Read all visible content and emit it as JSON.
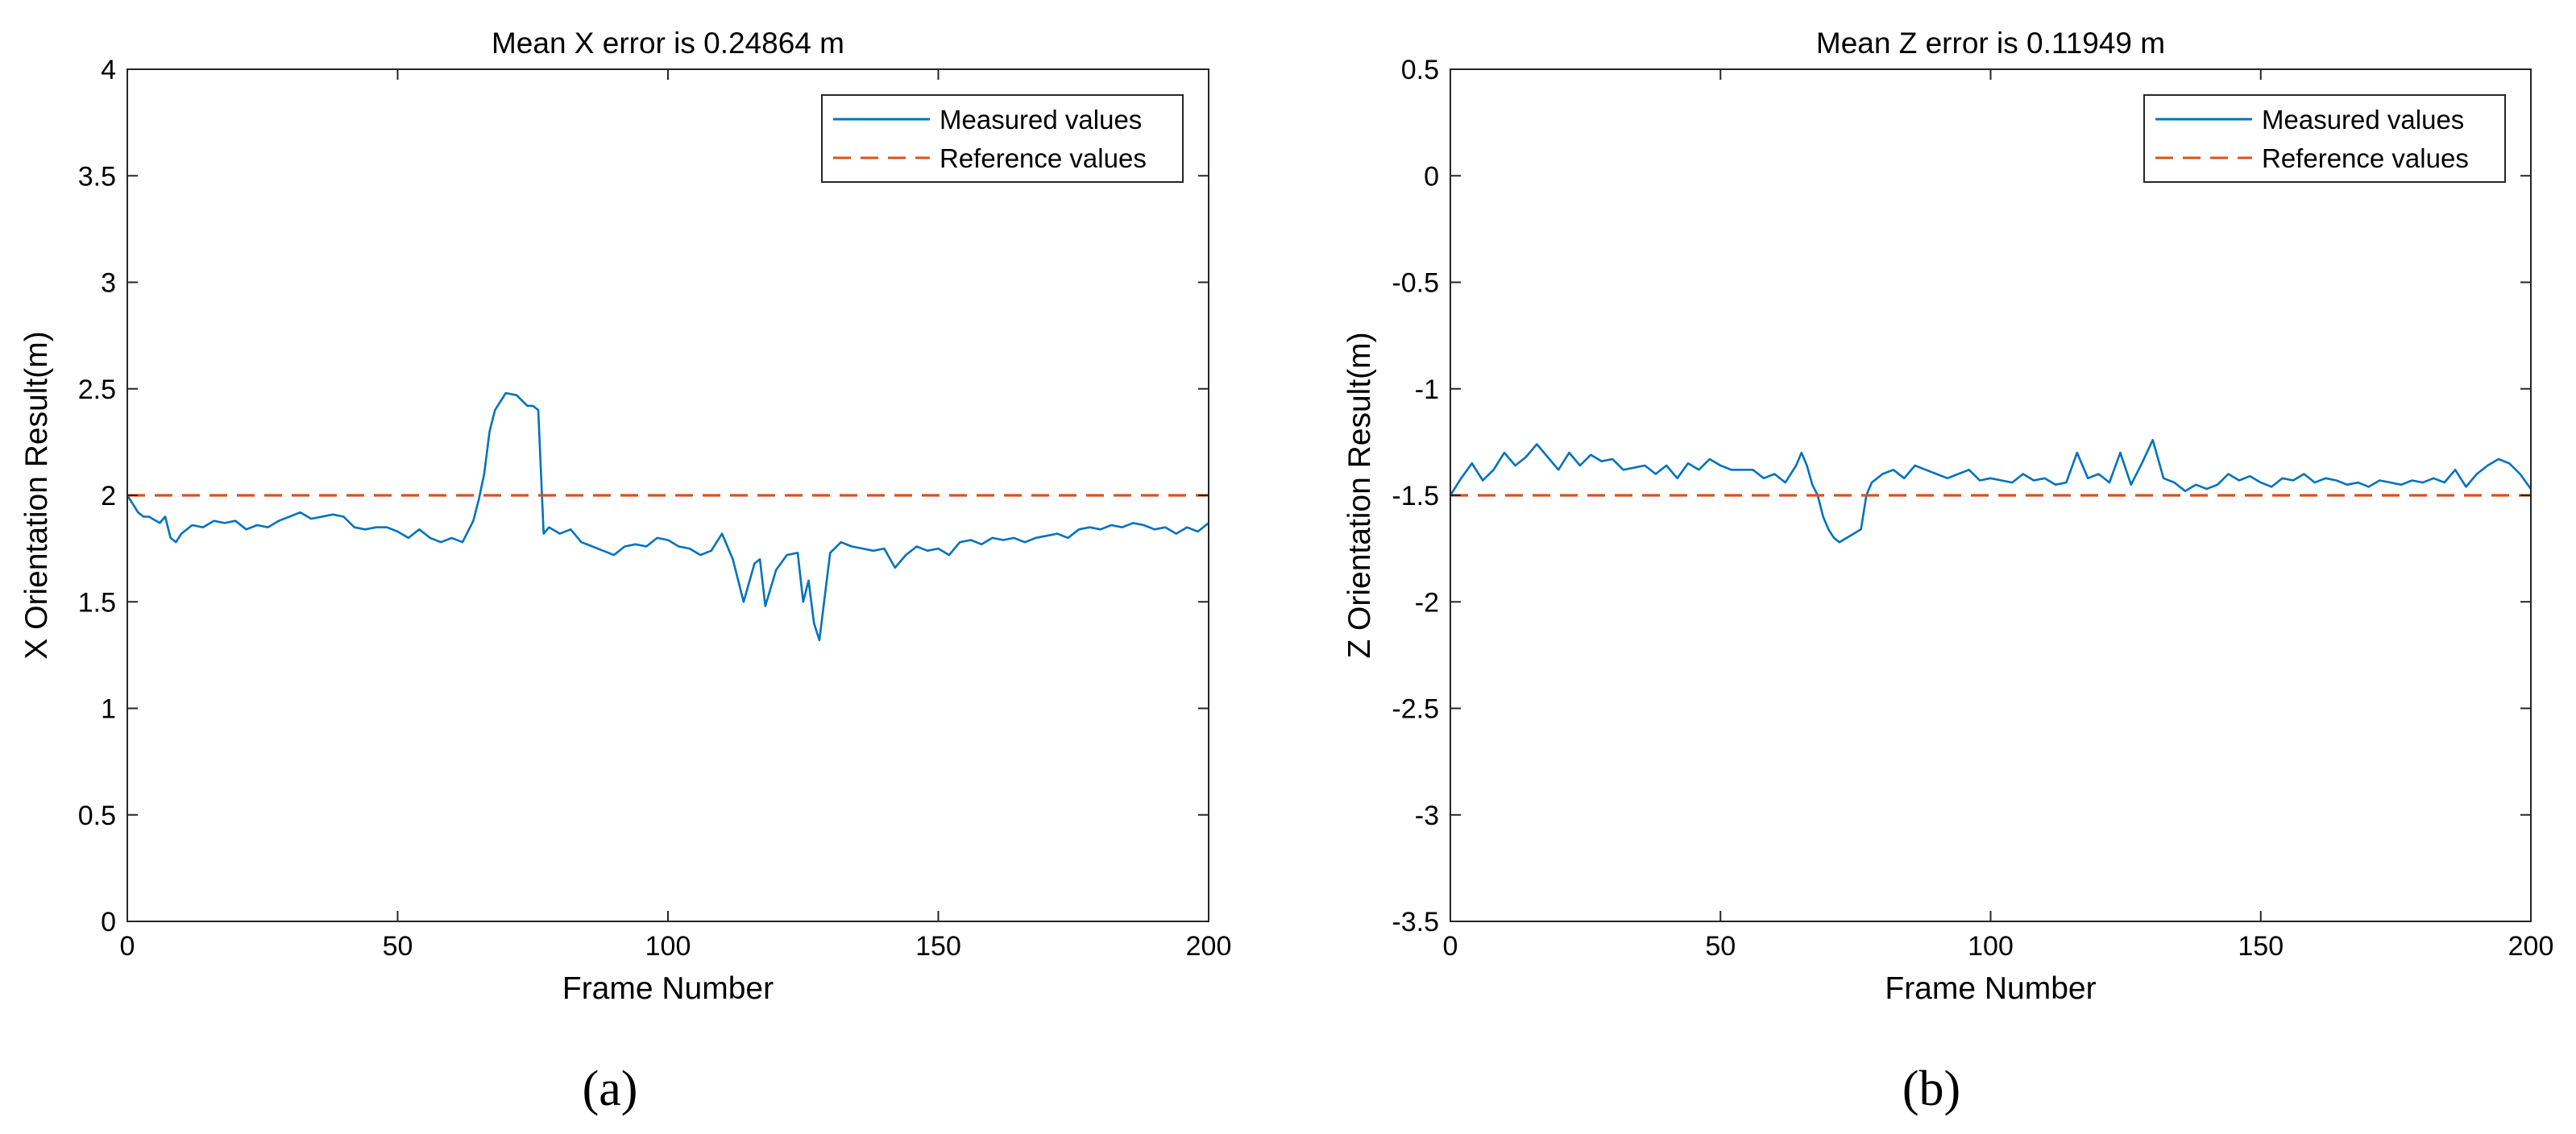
{
  "chart_data": [
    {
      "type": "line",
      "panel_label": "(a)",
      "title": "Mean X error is 0.24864 m",
      "xlabel": "Frame Number",
      "ylabel": "X Orientation Result(m)",
      "xlim": [
        0,
        200
      ],
      "ylim": [
        0,
        4
      ],
      "xticks": [
        0,
        50,
        100,
        150,
        200
      ],
      "yticks": [
        0,
        0.5,
        1,
        1.5,
        2,
        2.5,
        3,
        3.5,
        4
      ],
      "xtick_labels": [
        "0",
        "50",
        "100",
        "150",
        "200"
      ],
      "ytick_labels": [
        "0",
        "0.5",
        "1",
        "1.5",
        "2",
        "2.5",
        "3",
        "3.5",
        "4"
      ],
      "grid": false,
      "legend_position": "top-right",
      "series": [
        {
          "name": "Measured values",
          "style": "solid",
          "color": "#0072BD",
          "x": [
            0,
            2,
            3,
            4,
            6,
            7,
            8,
            9,
            10,
            12,
            14,
            16,
            18,
            20,
            22,
            24,
            26,
            28,
            30,
            32,
            34,
            36,
            38,
            40,
            42,
            44,
            46,
            48,
            50,
            52,
            54,
            56,
            58,
            60,
            62,
            64,
            65,
            66,
            67,
            68,
            70,
            72,
            74,
            75,
            76,
            77,
            78,
            80,
            82,
            84,
            86,
            88,
            90,
            92,
            94,
            96,
            98,
            100,
            102,
            104,
            106,
            108,
            110,
            112,
            114,
            116,
            117,
            118,
            120,
            122,
            124,
            125,
            126,
            127,
            128,
            130,
            132,
            134,
            136,
            138,
            140,
            142,
            144,
            146,
            148,
            150,
            152,
            154,
            156,
            158,
            160,
            162,
            164,
            166,
            168,
            170,
            172,
            174,
            176,
            178,
            180,
            182,
            184,
            186,
            188,
            190,
            192,
            194,
            196,
            198,
            200
          ],
          "values": [
            2.0,
            1.92,
            1.9,
            1.9,
            1.87,
            1.9,
            1.8,
            1.78,
            1.82,
            1.86,
            1.85,
            1.88,
            1.87,
            1.88,
            1.84,
            1.86,
            1.85,
            1.88,
            1.9,
            1.92,
            1.89,
            1.9,
            1.91,
            1.9,
            1.85,
            1.84,
            1.85,
            1.85,
            1.83,
            1.8,
            1.84,
            1.8,
            1.78,
            1.8,
            1.78,
            1.88,
            1.98,
            2.1,
            2.3,
            2.4,
            2.48,
            2.47,
            2.42,
            2.42,
            2.4,
            1.82,
            1.85,
            1.82,
            1.84,
            1.78,
            1.76,
            1.74,
            1.72,
            1.76,
            1.77,
            1.76,
            1.8,
            1.79,
            1.76,
            1.75,
            1.72,
            1.74,
            1.82,
            1.7,
            1.5,
            1.68,
            1.7,
            1.48,
            1.65,
            1.72,
            1.73,
            1.5,
            1.6,
            1.4,
            1.32,
            1.73,
            1.78,
            1.76,
            1.75,
            1.74,
            1.75,
            1.66,
            1.72,
            1.76,
            1.74,
            1.75,
            1.72,
            1.78,
            1.79,
            1.77,
            1.8,
            1.79,
            1.8,
            1.78,
            1.8,
            1.81,
            1.82,
            1.8,
            1.84,
            1.85,
            1.84,
            1.86,
            1.85,
            1.87,
            1.86,
            1.84,
            1.85,
            1.82,
            1.85,
            1.83,
            1.87
          ]
        },
        {
          "name": "Reference values",
          "style": "dashed",
          "color": "#D95319",
          "x": [
            0,
            200
          ],
          "values": [
            2,
            2
          ]
        }
      ]
    },
    {
      "type": "line",
      "panel_label": "(b)",
      "title": "Mean Z error is 0.11949 m",
      "xlabel": "Frame Number",
      "ylabel": "Z Orientation Result(m)",
      "xlim": [
        0,
        200
      ],
      "ylim": [
        -3.5,
        0.5
      ],
      "xticks": [
        0,
        50,
        100,
        150,
        200
      ],
      "yticks": [
        -3.5,
        -3,
        -2.5,
        -2,
        -1.5,
        -1,
        -0.5,
        0,
        0.5
      ],
      "xtick_labels": [
        "0",
        "50",
        "100",
        "150",
        "200"
      ],
      "ytick_labels": [
        "-3.5",
        "-3",
        "-2.5",
        "-2",
        "-1.5",
        "-1",
        "-0.5",
        "0",
        "0.5"
      ],
      "grid": false,
      "legend_position": "top-right",
      "series": [
        {
          "name": "Measured values",
          "style": "solid",
          "color": "#0072BD",
          "x": [
            0,
            2,
            4,
            6,
            8,
            10,
            12,
            14,
            16,
            18,
            20,
            22,
            24,
            26,
            28,
            30,
            32,
            34,
            36,
            38,
            40,
            42,
            44,
            46,
            48,
            50,
            52,
            54,
            56,
            58,
            60,
            62,
            64,
            65,
            66,
            67,
            68,
            69,
            70,
            71,
            72,
            74,
            76,
            77,
            78,
            80,
            82,
            84,
            86,
            88,
            90,
            92,
            94,
            96,
            98,
            100,
            102,
            104,
            106,
            108,
            110,
            112,
            114,
            116,
            118,
            120,
            122,
            124,
            126,
            128,
            130,
            132,
            134,
            136,
            138,
            140,
            142,
            144,
            146,
            148,
            150,
            152,
            154,
            156,
            158,
            160,
            162,
            164,
            166,
            168,
            170,
            172,
            174,
            176,
            178,
            180,
            182,
            184,
            186,
            188,
            190,
            192,
            194,
            196,
            198,
            200
          ],
          "values": [
            -1.5,
            -1.42,
            -1.35,
            -1.43,
            -1.38,
            -1.3,
            -1.36,
            -1.32,
            -1.26,
            -1.32,
            -1.38,
            -1.3,
            -1.36,
            -1.31,
            -1.34,
            -1.33,
            -1.38,
            -1.37,
            -1.36,
            -1.4,
            -1.36,
            -1.42,
            -1.35,
            -1.38,
            -1.33,
            -1.36,
            -1.38,
            -1.38,
            -1.38,
            -1.42,
            -1.4,
            -1.44,
            -1.36,
            -1.3,
            -1.36,
            -1.45,
            -1.5,
            -1.6,
            -1.66,
            -1.7,
            -1.72,
            -1.69,
            -1.66,
            -1.5,
            -1.44,
            -1.4,
            -1.38,
            -1.42,
            -1.36,
            -1.38,
            -1.4,
            -1.42,
            -1.4,
            -1.38,
            -1.43,
            -1.42,
            -1.43,
            -1.44,
            -1.4,
            -1.43,
            -1.42,
            -1.45,
            -1.44,
            -1.3,
            -1.42,
            -1.4,
            -1.44,
            -1.3,
            -1.45,
            -1.35,
            -1.24,
            -1.42,
            -1.44,
            -1.48,
            -1.45,
            -1.47,
            -1.45,
            -1.4,
            -1.43,
            -1.41,
            -1.44,
            -1.46,
            -1.42,
            -1.43,
            -1.4,
            -1.44,
            -1.42,
            -1.43,
            -1.45,
            -1.44,
            -1.46,
            -1.43,
            -1.44,
            -1.45,
            -1.43,
            -1.44,
            -1.42,
            -1.44,
            -1.38,
            -1.46,
            -1.4,
            -1.36,
            -1.33,
            -1.35,
            -1.4,
            -1.47
          ]
        },
        {
          "name": "Reference values",
          "style": "dashed",
          "color": "#D95319",
          "x": [
            0,
            200
          ],
          "values": [
            -1.5,
            -1.5
          ]
        }
      ]
    }
  ]
}
